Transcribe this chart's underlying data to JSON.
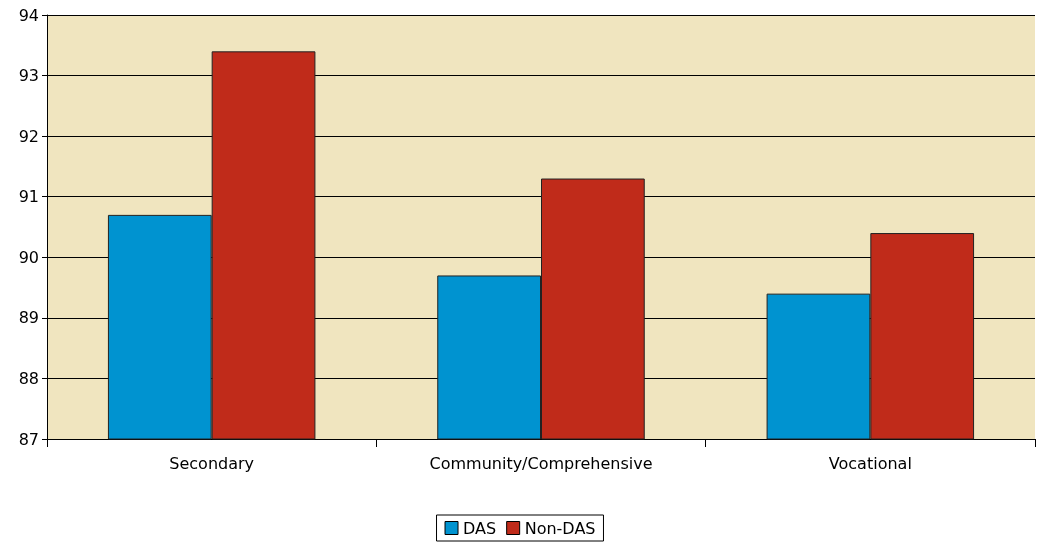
{
  "chart_data": {
    "type": "bar",
    "categories": [
      "Secondary",
      "Community/Comprehensive",
      "Vocational"
    ],
    "series": [
      {
        "name": "DAS",
        "color": "#0093d0",
        "values": [
          90.7,
          89.7,
          89.4
        ]
      },
      {
        "name": "Non-DAS",
        "color": "#c02b1a",
        "values": [
          93.4,
          91.3,
          90.4
        ]
      }
    ],
    "ylim": [
      87,
      94
    ],
    "yticks": [
      87,
      88,
      89,
      90,
      91,
      92,
      93,
      94
    ],
    "grid": "y",
    "legend": "bottom"
  }
}
